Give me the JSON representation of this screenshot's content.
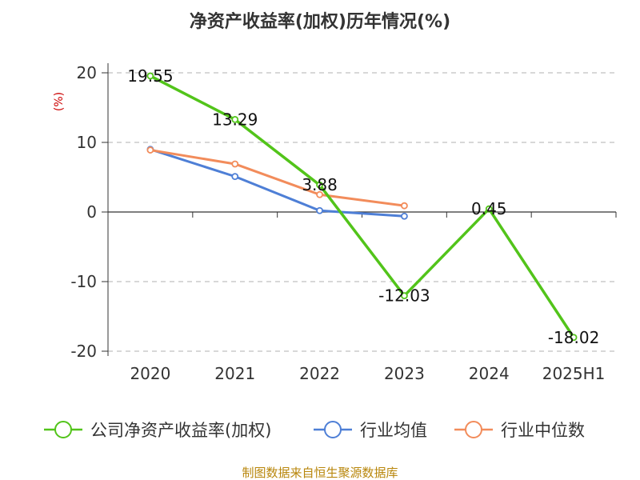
{
  "title": "净资产收益率(加权)历年情况(%)",
  "footer": "制图数据来自恒生聚源数据库",
  "chart_data": {
    "type": "line",
    "title": "净资产收益率(加权)历年情况(%)",
    "ylabel": "(%)",
    "xlabel": "",
    "categories": [
      "2020",
      "2021",
      "2022",
      "2023",
      "2024",
      "2025H1"
    ],
    "ylim": [
      -20,
      20
    ],
    "yticks": [
      20,
      10,
      0,
      -10,
      -20
    ],
    "grid": true,
    "legend_position": "bottom",
    "series": [
      {
        "name": "公司净资产收益率(加权)",
        "color": "#52c41a",
        "values": [
          19.55,
          13.29,
          3.88,
          -12.03,
          0.45,
          -18.02
        ],
        "labels": [
          "19.55",
          "13.29",
          "3.88",
          "-12.03",
          "0.45",
          "-18.02"
        ]
      },
      {
        "name": "行业均值",
        "color": "#4e7fd6",
        "values": [
          9.0,
          5.1,
          0.2,
          -0.6,
          null,
          null
        ]
      },
      {
        "name": "行业中位数",
        "color": "#f28c5b",
        "values": [
          8.9,
          6.9,
          2.5,
          0.9,
          null,
          null
        ]
      }
    ]
  }
}
